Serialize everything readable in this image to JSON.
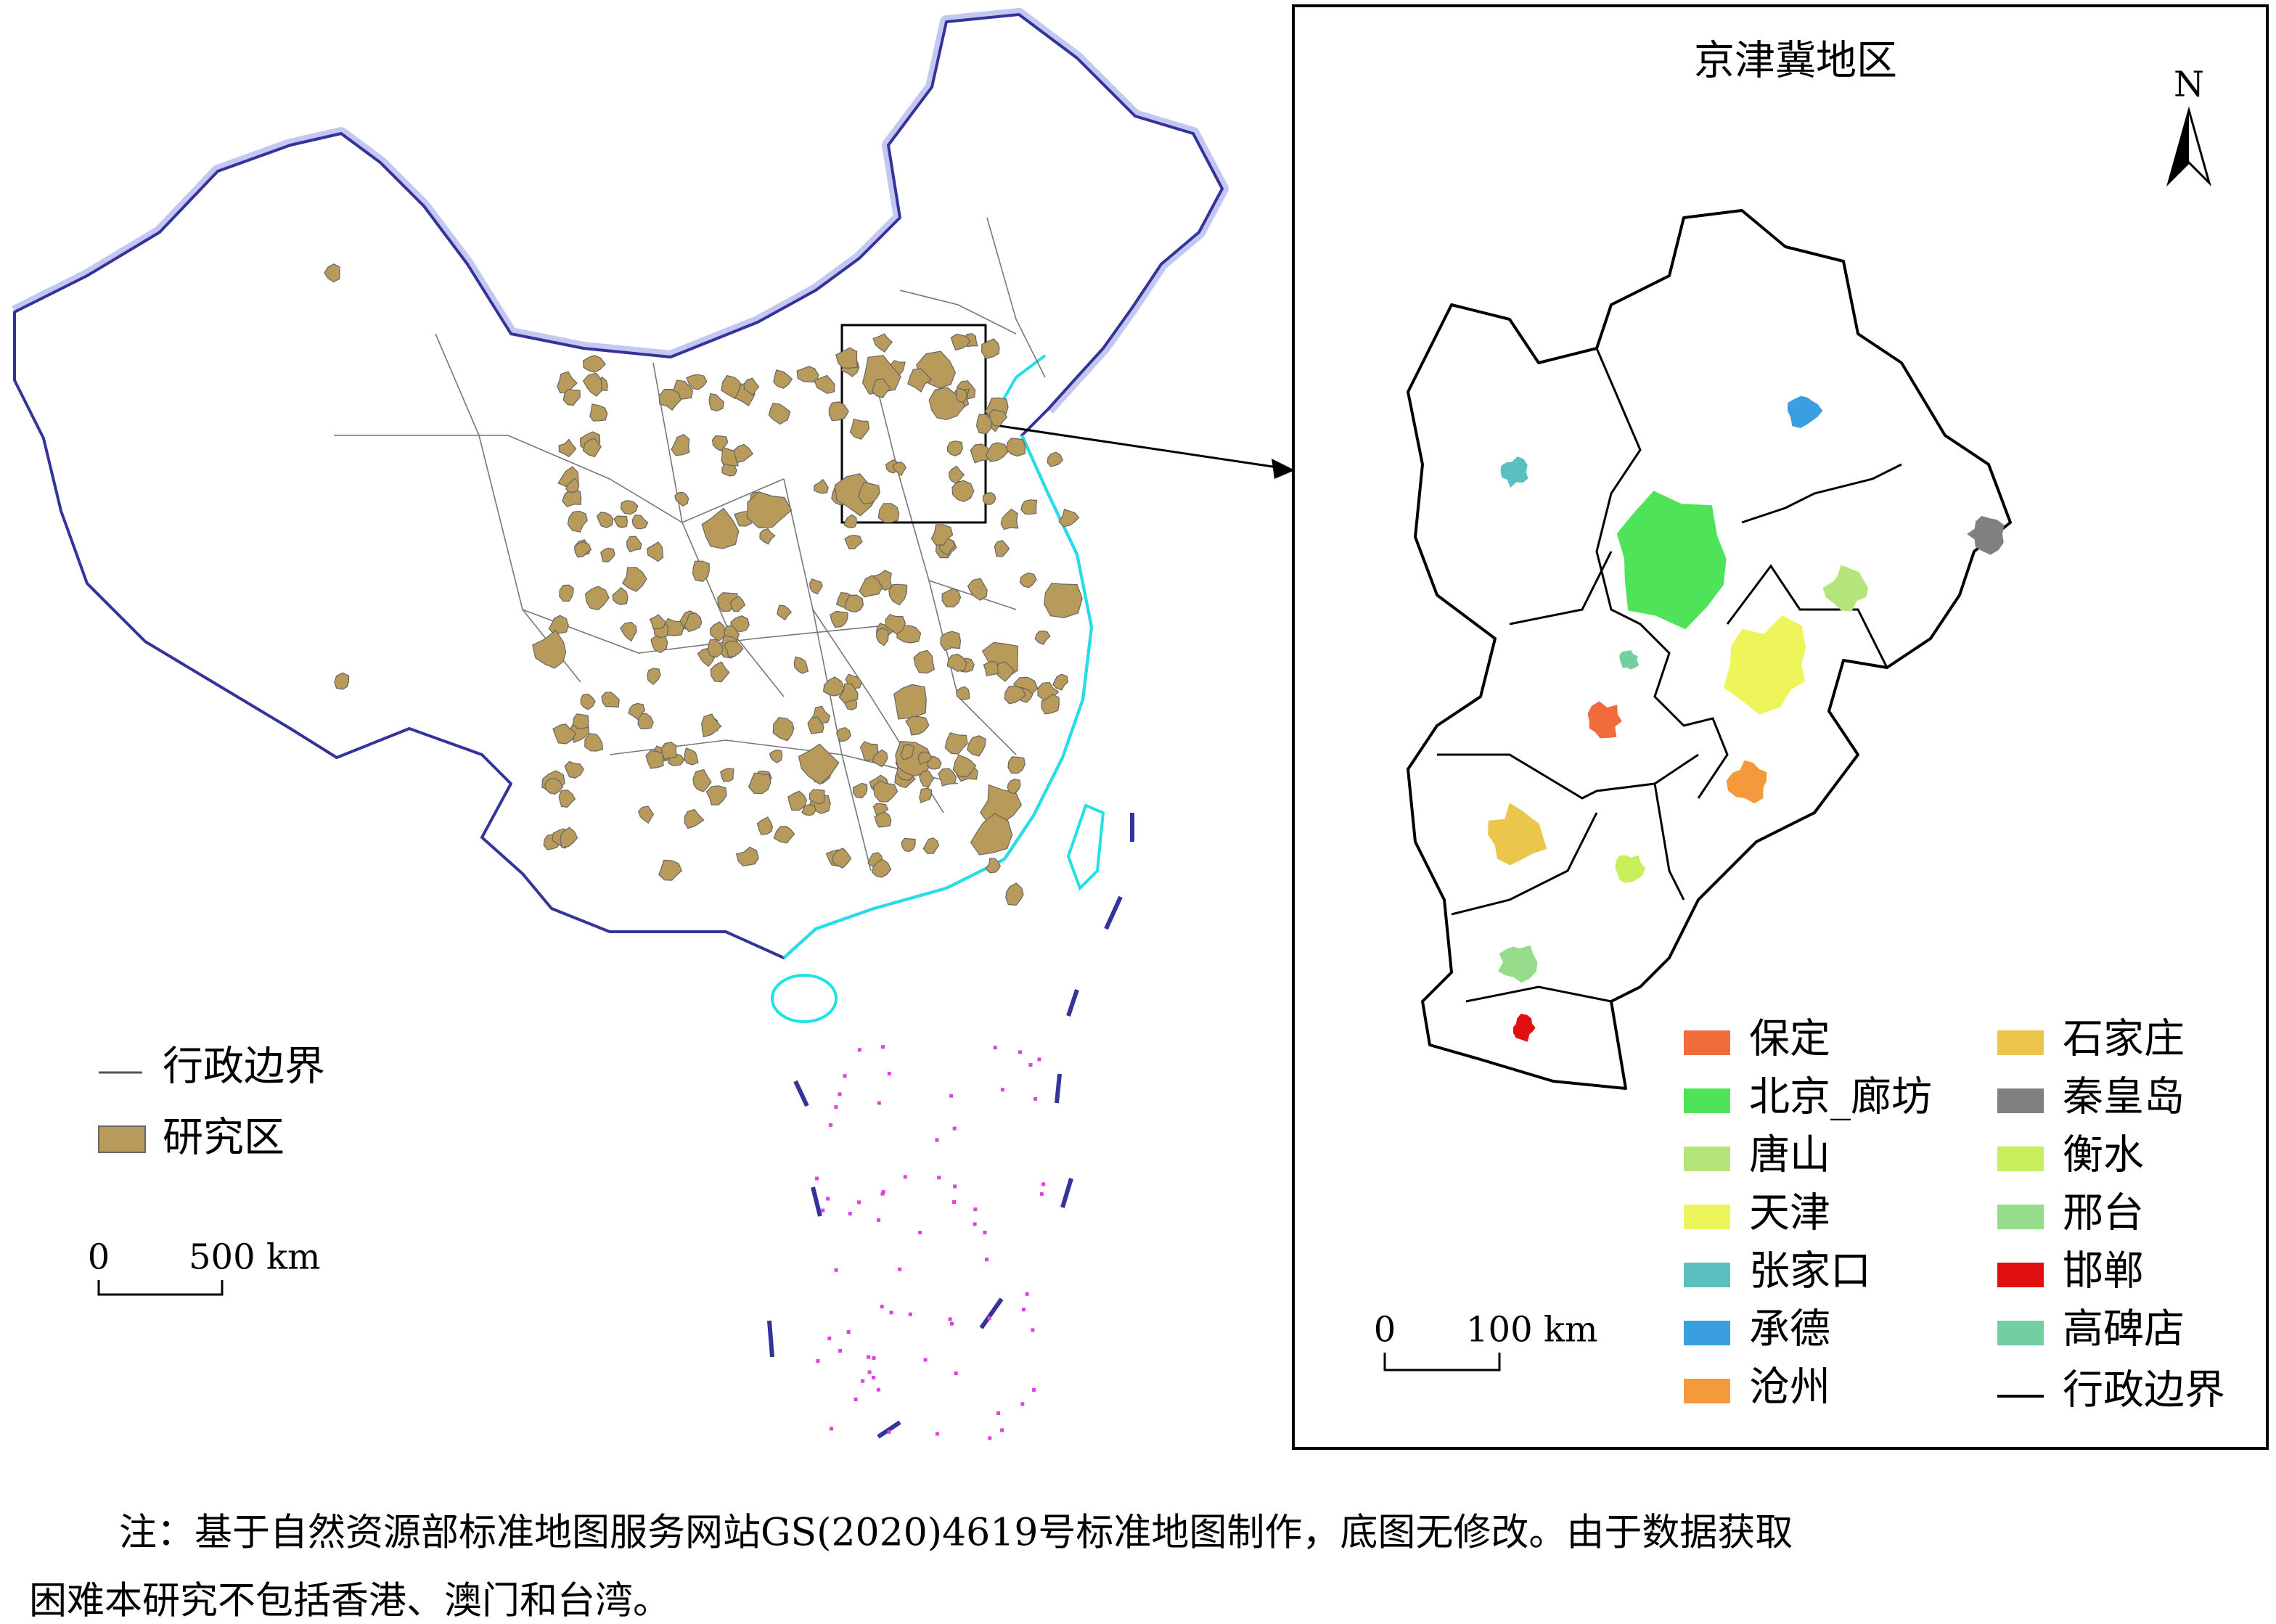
{
  "main_map": {
    "legend": [
      {
        "label": "行政边界",
        "color": "#555555"
      },
      {
        "label": "研究区",
        "color": "#b89a5a"
      }
    ],
    "scale_bar": {
      "start": "0",
      "end": "500 km"
    }
  },
  "inset": {
    "title": "京津冀地区",
    "north": "N",
    "legend": [
      {
        "label": "保定",
        "color": "#f26b3a"
      },
      {
        "label": "北京_廊坊",
        "color": "#4fe35a"
      },
      {
        "label": "唐山",
        "color": "#b5e57a"
      },
      {
        "label": "天津",
        "color": "#eef55a"
      },
      {
        "label": "张家口",
        "color": "#5bbfbf"
      },
      {
        "label": "承德",
        "color": "#3a9fe0"
      },
      {
        "label": "沧州",
        "color": "#f29a3c"
      },
      {
        "label": "石家庄",
        "color": "#eac64a"
      },
      {
        "label": "秦皇岛",
        "color": "#808080"
      },
      {
        "label": "衡水",
        "color": "#c6ef5a"
      },
      {
        "label": "邢台",
        "color": "#96dc8a"
      },
      {
        "label": "邯郸",
        "color": "#e01010"
      },
      {
        "label": "高碑店",
        "color": "#72cf9f"
      }
    ],
    "boundary_label": "行政边界",
    "scale_bar": {
      "start": "0",
      "end": "100 km"
    }
  },
  "note": [
    "注：基于自然资源部标准地图服务网站GS(2020)4619号标准地图制作，底图无修改。由于数据获取",
    "困难本研究不包括香港、澳门和台湾。"
  ]
}
